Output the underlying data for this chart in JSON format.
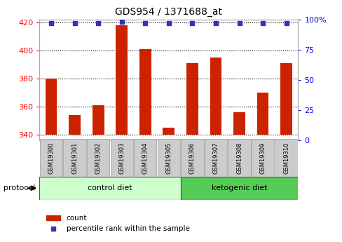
{
  "title": "GDS954 / 1371688_at",
  "samples": [
    "GSM19300",
    "GSM19301",
    "GSM19302",
    "GSM19303",
    "GSM19304",
    "GSM19305",
    "GSM19306",
    "GSM19307",
    "GSM19308",
    "GSM19309",
    "GSM19310"
  ],
  "counts": [
    380,
    354,
    361,
    418,
    401,
    345,
    391,
    395,
    356,
    370,
    391
  ],
  "percentile_ranks": [
    97,
    97,
    97,
    98,
    97,
    97,
    97,
    97,
    97,
    97,
    97
  ],
  "ylim_left": [
    336,
    422
  ],
  "ylim_right": [
    0,
    100
  ],
  "yticks_left": [
    340,
    360,
    380,
    400,
    420
  ],
  "yticks_right": [
    0,
    25,
    50,
    75,
    100
  ],
  "bar_color": "#cc2200",
  "dot_color": "#3333bb",
  "bar_bottom": 340,
  "control_label": "control diet",
  "ketogenic_label": "ketogenic diet",
  "protocol_label": "protocol",
  "legend_count": "count",
  "legend_percentile": "percentile rank within the sample",
  "control_bg": "#ccffcc",
  "ketogenic_bg": "#55cc55",
  "xlabel_bg": "#cccccc",
  "bar_width": 0.5,
  "n_control": 6,
  "n_total": 11
}
